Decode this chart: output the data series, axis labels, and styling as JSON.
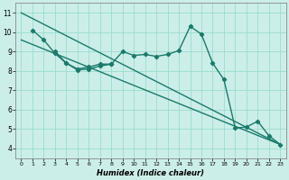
{
  "xlabel": "Humidex (Indice chaleur)",
  "bg_color": "#cceee8",
  "grid_color": "#99ddcc",
  "line_color": "#1a7a6a",
  "xlim": [
    -0.5,
    23.5
  ],
  "ylim": [
    3.5,
    11.5
  ],
  "xticks": [
    0,
    1,
    2,
    3,
    4,
    5,
    6,
    7,
    8,
    9,
    10,
    11,
    12,
    13,
    14,
    15,
    16,
    17,
    18,
    19,
    20,
    21,
    22,
    23
  ],
  "yticks": [
    4,
    5,
    6,
    7,
    8,
    9,
    10,
    11
  ],
  "straight_line1": {
    "x": [
      0,
      23
    ],
    "y": [
      11.0,
      4.2
    ]
  },
  "straight_line2": {
    "x": [
      0,
      23
    ],
    "y": [
      9.6,
      4.2
    ]
  },
  "wavy_line": {
    "x": [
      1,
      2,
      3,
      4,
      5,
      6,
      7,
      8,
      9,
      10,
      11,
      12,
      13,
      14,
      15,
      16,
      17,
      18,
      19,
      20,
      21,
      22,
      23
    ],
    "y": [
      10.1,
      9.6,
      8.9,
      8.4,
      8.1,
      8.2,
      8.35,
      8.35,
      9.0,
      8.8,
      8.85,
      8.75,
      8.85,
      9.05,
      10.3,
      9.9,
      8.4,
      7.55,
      5.05,
      5.1,
      5.4,
      4.65,
      4.2
    ]
  },
  "short_line": {
    "x": [
      3,
      4,
      5,
      6,
      7,
      8
    ],
    "y": [
      9.0,
      8.4,
      8.05,
      8.1,
      8.25,
      8.35
    ]
  }
}
